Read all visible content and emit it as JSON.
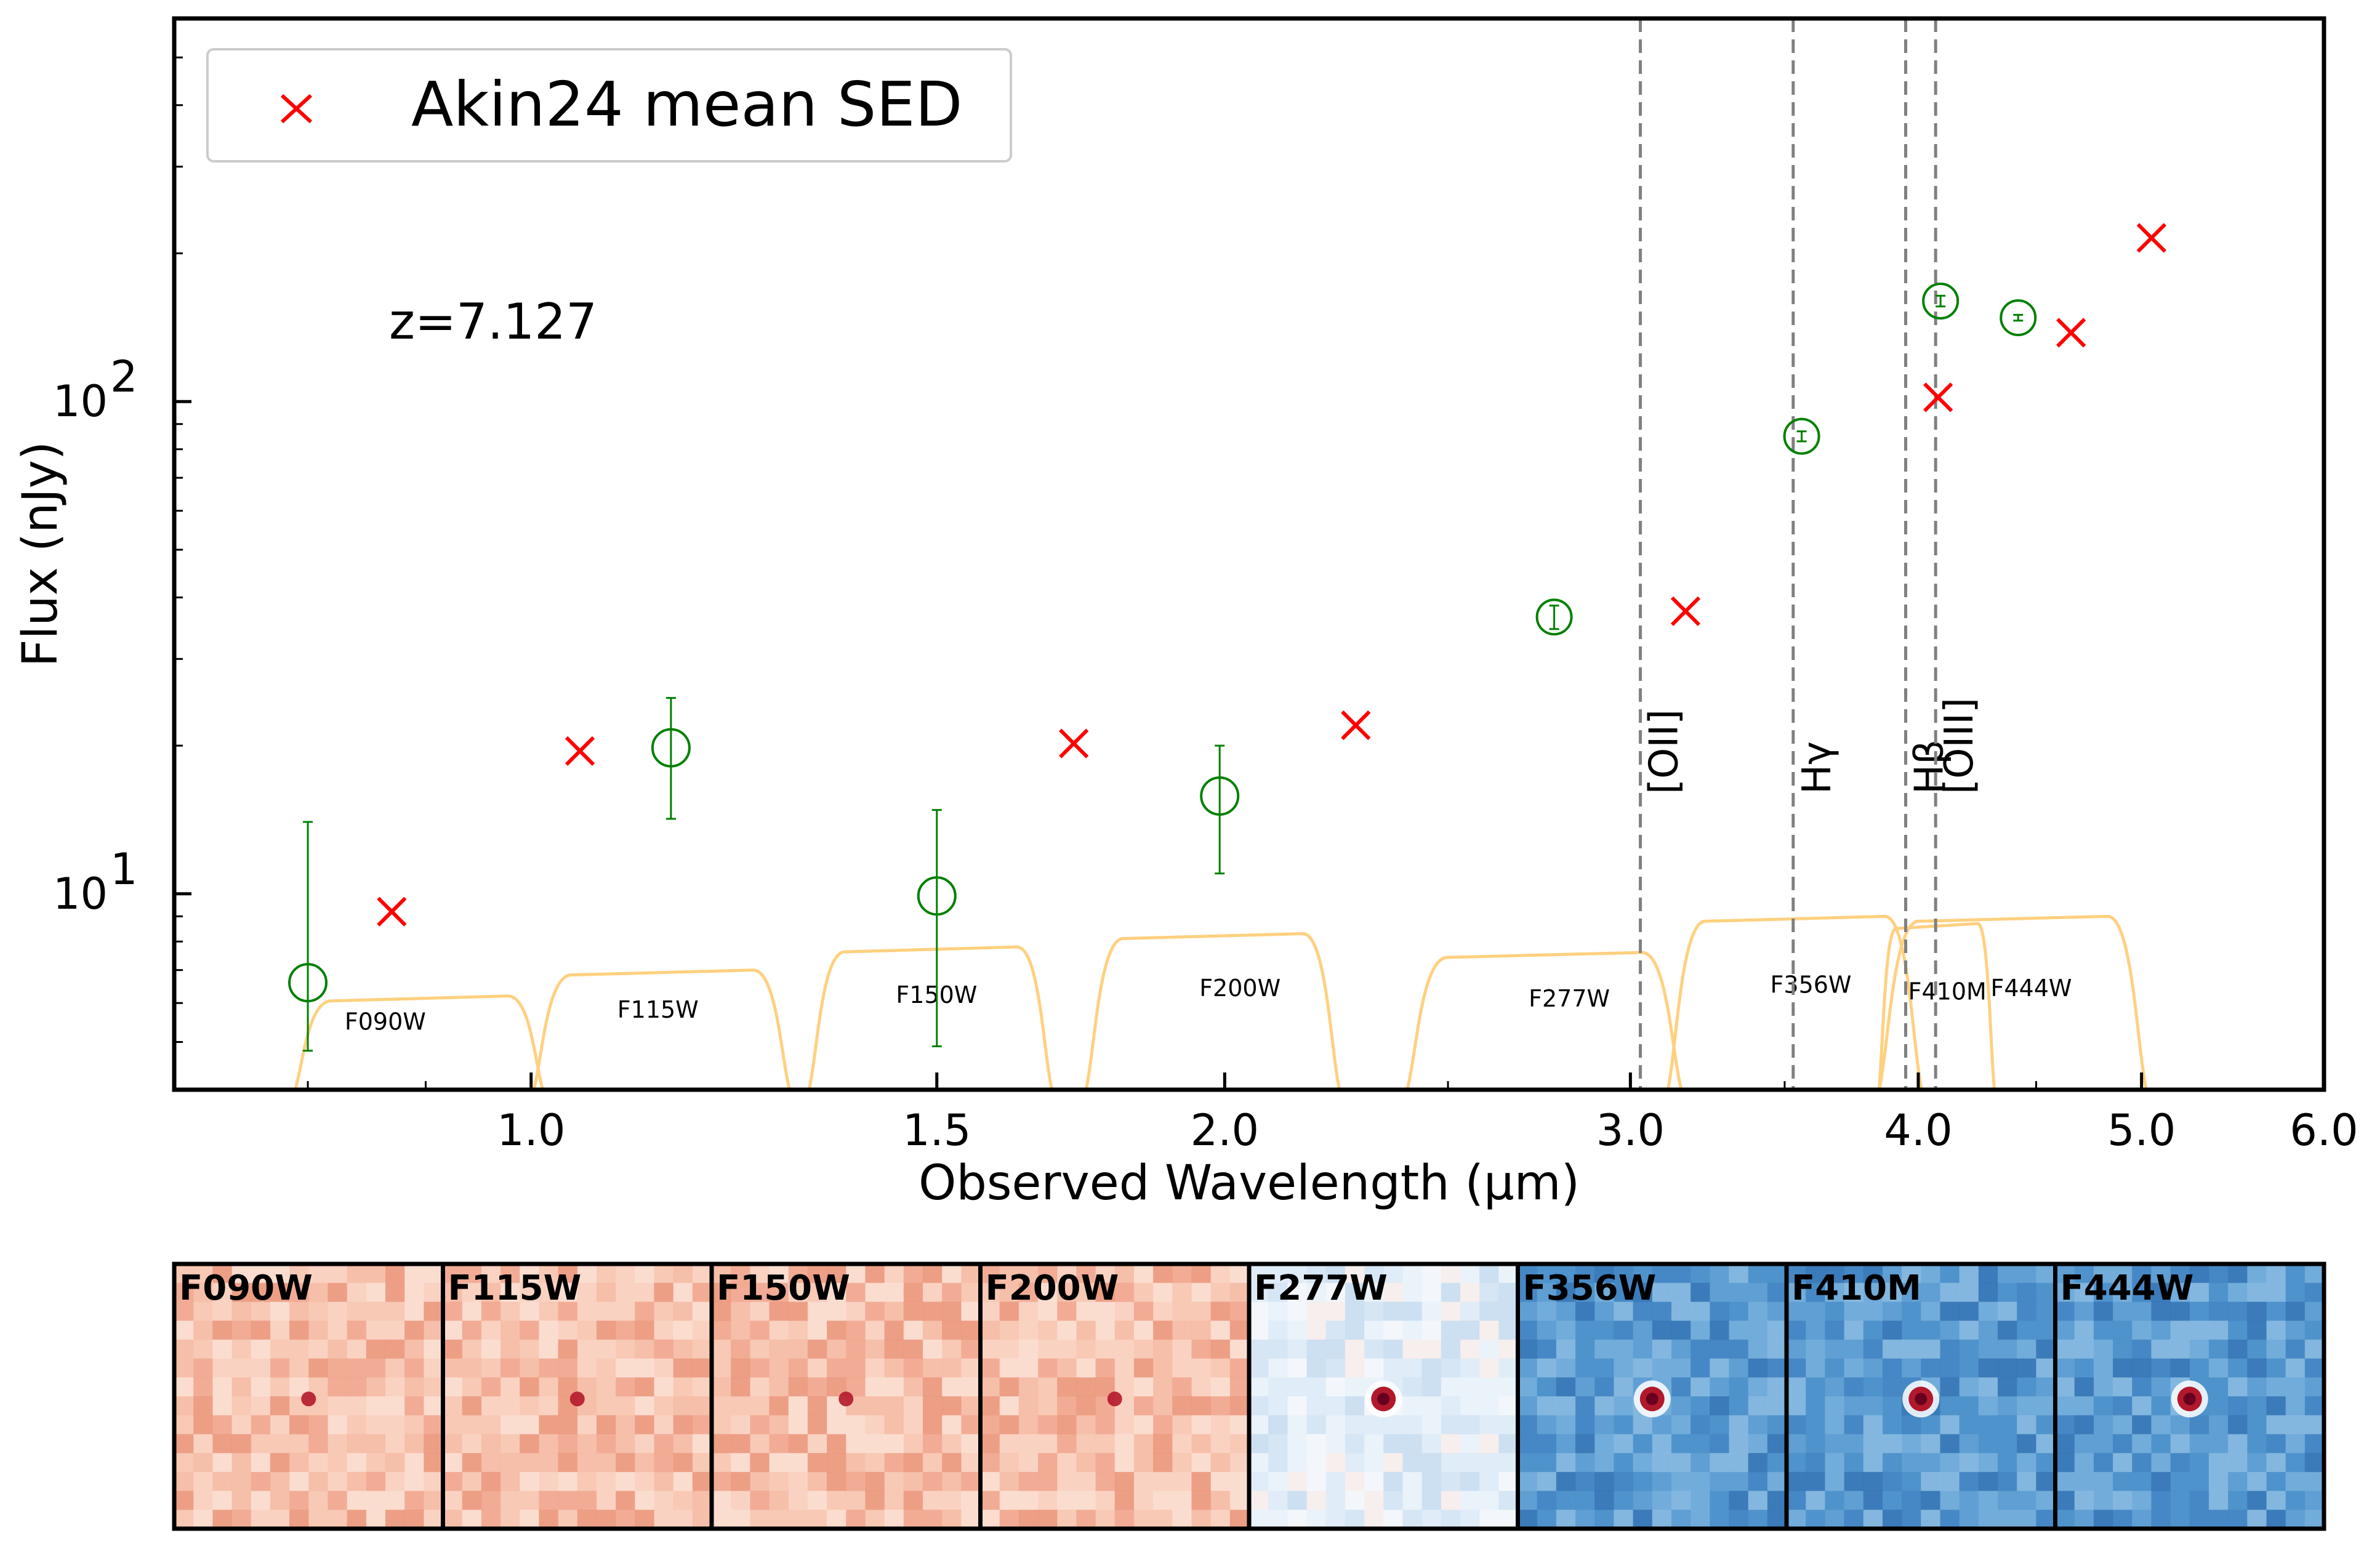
{
  "chart_data": {
    "type": "scatter",
    "xlabel": "Observed Wavelength (μm)",
    "ylabel": "Flux (nJy)",
    "xscale": "log",
    "yscale": "log",
    "xlim": [
      0.7,
      6.0
    ],
    "ylim": [
      4,
      600
    ],
    "x_ticks": [
      {
        "value": 1.0,
        "label": "1.0"
      },
      {
        "value": 1.5,
        "label": "1.5"
      },
      {
        "value": 2.0,
        "label": "2.0"
      },
      {
        "value": 3.0,
        "label": "3.0"
      },
      {
        "value": 4.0,
        "label": "4.0"
      },
      {
        "value": 5.0,
        "label": "5.0"
      },
      {
        "value": 6.0,
        "label": "6.0"
      }
    ],
    "y_ticks": [
      {
        "value": 10,
        "base": "10",
        "exp": "1"
      },
      {
        "value": 100,
        "base": "10",
        "exp": "2"
      }
    ],
    "redshift_label": "z=7.127",
    "legend": {
      "position": "top-left",
      "entries": [
        "Akin24 mean SED"
      ]
    },
    "series": [
      {
        "name": "Akin24 mean SED",
        "marker": "x",
        "color": "#ff0000",
        "points": [
          {
            "x": 0.87,
            "y": 9.2
          },
          {
            "x": 1.05,
            "y": 19.5
          },
          {
            "x": 1.72,
            "y": 20.2
          },
          {
            "x": 2.28,
            "y": 22.0
          },
          {
            "x": 3.17,
            "y": 37.5
          },
          {
            "x": 4.08,
            "y": 102
          },
          {
            "x": 4.66,
            "y": 138
          },
          {
            "x": 5.05,
            "y": 215
          }
        ]
      },
      {
        "marker": "circle",
        "color": "#008000",
        "points": [
          {
            "x": 0.8,
            "y": 6.6,
            "ylo": 4.8,
            "yhi": 14.0
          },
          {
            "x": 1.15,
            "y": 19.8,
            "ylo": 14.2,
            "yhi": 25.0
          },
          {
            "x": 1.5,
            "y": 9.9,
            "ylo": 4.9,
            "yhi": 14.8
          },
          {
            "x": 1.99,
            "y": 15.8,
            "ylo": 11.0,
            "yhi": 20.0
          },
          {
            "x": 2.78,
            "y": 36.5,
            "ylo": 34.5,
            "yhi": 38.5
          },
          {
            "x": 3.56,
            "y": 85,
            "ylo": 83,
            "yhi": 87
          },
          {
            "x": 4.09,
            "y": 160,
            "ylo": 156,
            "yhi": 164
          },
          {
            "x": 4.42,
            "y": 148,
            "ylo": 146,
            "yhi": 150
          }
        ]
      }
    ],
    "emission_lines": [
      {
        "label": "[OII]",
        "x": 3.03
      },
      {
        "label": "Hγ",
        "x": 3.53
      },
      {
        "label": "Hβ",
        "x": 3.95
      },
      {
        "label": "[OIII]",
        "x": 4.07
      }
    ],
    "filters": [
      {
        "name": "F090W",
        "lo": 0.795,
        "hi": 1.005,
        "level": 6.2,
        "label_x": 0.83,
        "label_y": 5.3
      },
      {
        "name": "F115W",
        "lo": 1.01,
        "hi": 1.285,
        "level": 7.0,
        "label_x": 1.09,
        "label_y": 5.6
      },
      {
        "name": "F150W",
        "lo": 1.33,
        "hi": 1.67,
        "level": 7.8,
        "label_x": 1.44,
        "label_y": 6.0
      },
      {
        "name": "F200W",
        "lo": 1.755,
        "hi": 2.225,
        "level": 8.3,
        "label_x": 1.95,
        "label_y": 6.2
      },
      {
        "name": "F277W",
        "lo": 2.42,
        "hi": 3.13,
        "level": 7.6,
        "label_x": 2.71,
        "label_y": 5.9
      },
      {
        "name": "F356W",
        "lo": 3.14,
        "hi": 3.98,
        "level": 9.0,
        "label_x": 3.45,
        "label_y": 6.3
      },
      {
        "name": "F410M",
        "lo": 3.86,
        "hi": 4.3,
        "level": 8.7,
        "label_x": 3.96,
        "label_y": 6.1
      },
      {
        "name": "F444W",
        "lo": 3.88,
        "hi": 4.98,
        "level": 9.0,
        "label_x": 4.3,
        "label_y": 6.2
      }
    ],
    "cutouts": [
      {
        "label": "F090W",
        "colormap": "red",
        "source": "faint"
      },
      {
        "label": "F115W",
        "colormap": "red",
        "source": "faint"
      },
      {
        "label": "F150W",
        "colormap": "red",
        "source": "faint"
      },
      {
        "label": "F200W",
        "colormap": "red",
        "source": "faint"
      },
      {
        "label": "F277W",
        "colormap": "light-blue",
        "source": "bright"
      },
      {
        "label": "F356W",
        "colormap": "blue",
        "source": "bright"
      },
      {
        "label": "F410M",
        "colormap": "blue",
        "source": "bright"
      },
      {
        "label": "F444W",
        "colormap": "blue",
        "source": "bright"
      }
    ]
  },
  "colors": {
    "sed_marker": "#ff0000",
    "photometry": "#008000",
    "filter_curve": "#ffd080",
    "emission_line": "#808080",
    "cutout_red_bg": "#f4b8a0",
    "cutout_blue_bg": "#5f9fd3",
    "cutout_lightblue_bg": "#dceaf5"
  }
}
